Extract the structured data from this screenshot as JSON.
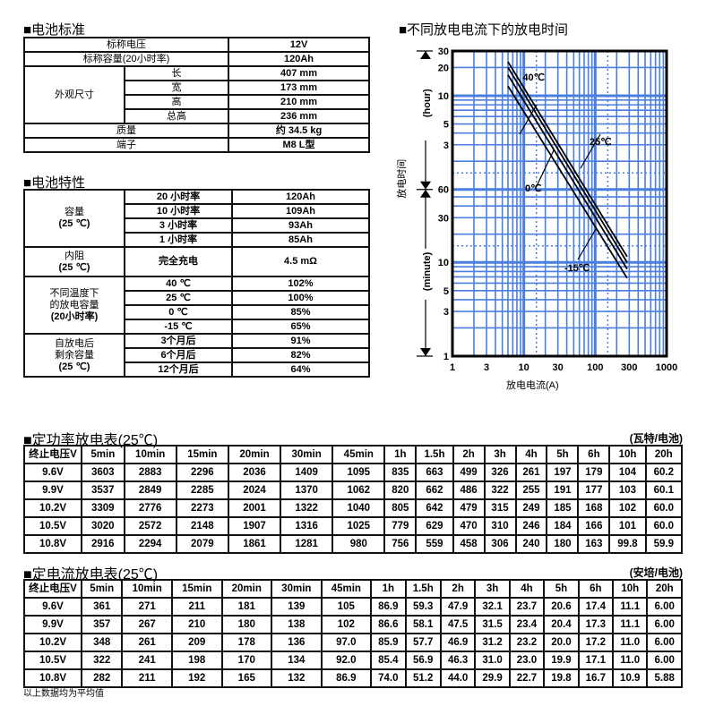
{
  "spec": {
    "title": "■电池标准",
    "rows": [
      [
        "标称电压",
        "12V"
      ],
      [
        "标称容量(20小时率)",
        "120Ah"
      ]
    ],
    "dim_label": "外观尺寸",
    "dims": [
      [
        "长",
        "407 mm"
      ],
      [
        "宽",
        "173 mm"
      ],
      [
        "高",
        "210 mm"
      ],
      [
        "总高",
        "236 mm"
      ]
    ],
    "rows2": [
      [
        "质量",
        "约 34.5 kg"
      ],
      [
        "端子",
        "M8 L型"
      ]
    ]
  },
  "char": {
    "title": "■电池特性",
    "groups": [
      {
        "label": [
          "容量",
          "(25 ℃)"
        ],
        "rows": [
          [
            "20 小时率",
            "120Ah"
          ],
          [
            "10 小时率",
            "109Ah"
          ],
          [
            "3 小时率",
            "93Ah"
          ],
          [
            "1 小时率",
            "85Ah"
          ]
        ]
      },
      {
        "label": [
          "内阻",
          "(25 ℃)"
        ],
        "rows": [
          [
            "完全充电",
            "4.5 mΩ"
          ]
        ]
      },
      {
        "label": [
          "不同温度下",
          "的放电容量",
          "(20小时率)"
        ],
        "rows": [
          [
            "40 ℃",
            "102%"
          ],
          [
            "25 ℃",
            "100%"
          ],
          [
            "0 ℃",
            "85%"
          ],
          [
            "-15  ℃",
            "65%"
          ]
        ]
      },
      {
        "label": [
          "自放电后",
          "剩余容量",
          "(25 ℃)"
        ],
        "rows": [
          [
            "3个月后",
            "91%"
          ],
          [
            "6个月后",
            "82%"
          ],
          [
            "12个月后",
            "64%"
          ]
        ]
      }
    ]
  },
  "chart_data": {
    "type": "line",
    "title": "■不同放电电流下的放电时间",
    "xlabel": "放电电流(A)",
    "ylabel": "放电时间",
    "ylabel_hour": "(hour)",
    "ylabel_minute": "(minute)",
    "xscale": "log",
    "xlim": [
      1,
      1000
    ],
    "xticks": [
      "1",
      "3",
      "10",
      "30",
      "100",
      "300",
      "1000"
    ],
    "yscale": "log",
    "ylim_minutes": [
      1,
      1800
    ],
    "yticks_minute": [
      "1",
      "3",
      "5",
      "10",
      "30",
      "60"
    ],
    "yticks_hour": [
      "3",
      "5",
      "10",
      "20",
      "30"
    ],
    "grid": true,
    "grid_color": "#4a7fe0",
    "series": [
      {
        "name": "40℃",
        "x": [
          6,
          280
        ],
        "minutes": [
          1380,
          11.5
        ]
      },
      {
        "name": "25℃",
        "x": [
          6,
          280
        ],
        "minutes": [
          1200,
          10
        ]
      },
      {
        "name": "0℃",
        "x": [
          6,
          280
        ],
        "minutes": [
          1000,
          8.5
        ]
      },
      {
        "name": "-15℃",
        "x": [
          6,
          280
        ],
        "minutes": [
          760,
          6.8
        ]
      }
    ]
  },
  "power": {
    "title": "■定功率放电表(25℃)",
    "unit": "(瓦特/电池)",
    "header": [
      "终止电压V",
      "5min",
      "10min",
      "15min",
      "20min",
      "30min",
      "45min",
      "1h",
      "1.5h",
      "2h",
      "3h",
      "4h",
      "5h",
      "6h",
      "10h",
      "20h"
    ],
    "rows": [
      [
        "9.6V",
        "3603",
        "2883",
        "2296",
        "2036",
        "1409",
        "1095",
        "835",
        "663",
        "499",
        "326",
        "261",
        "197",
        "179",
        "104",
        "60.2"
      ],
      [
        "9.9V",
        "3537",
        "2849",
        "2285",
        "2024",
        "1370",
        "1062",
        "820",
        "662",
        "486",
        "322",
        "255",
        "191",
        "177",
        "103",
        "60.1"
      ],
      [
        "10.2V",
        "3309",
        "2776",
        "2273",
        "2001",
        "1322",
        "1040",
        "805",
        "642",
        "479",
        "315",
        "249",
        "185",
        "168",
        "102",
        "60.0"
      ],
      [
        "10.5V",
        "3020",
        "2572",
        "2148",
        "1907",
        "1316",
        "1025",
        "779",
        "629",
        "470",
        "310",
        "246",
        "184",
        "166",
        "101",
        "60.0"
      ],
      [
        "10.8V",
        "2916",
        "2294",
        "2079",
        "1861",
        "1281",
        "980",
        "756",
        "559",
        "458",
        "306",
        "240",
        "180",
        "163",
        "99.8",
        "59.9"
      ]
    ]
  },
  "current": {
    "title": "■定电流放电表(25℃)",
    "unit": "(安培/电池)",
    "header": [
      "终止电压V",
      "5min",
      "10min",
      "15min",
      "20min",
      "30min",
      "45min",
      "1h",
      "1.5h",
      "2h",
      "3h",
      "4h",
      "5h",
      "6h",
      "10h",
      "20h"
    ],
    "rows": [
      [
        "9.6V",
        "361",
        "271",
        "211",
        "181",
        "139",
        "105",
        "86.9",
        "59.3",
        "47.9",
        "32.1",
        "23.7",
        "20.6",
        "17.4",
        "11.1",
        "6.00"
      ],
      [
        "9.9V",
        "357",
        "267",
        "210",
        "180",
        "138",
        "102",
        "86.6",
        "58.1",
        "47.5",
        "31.5",
        "23.4",
        "20.4",
        "17.3",
        "11.1",
        "6.00"
      ],
      [
        "10.2V",
        "348",
        "261",
        "209",
        "178",
        "136",
        "97.0",
        "85.9",
        "57.7",
        "46.9",
        "31.2",
        "23.2",
        "20.0",
        "17.2",
        "11.0",
        "6.00"
      ],
      [
        "10.5V",
        "322",
        "241",
        "198",
        "170",
        "134",
        "92.0",
        "85.4",
        "56.9",
        "46.3",
        "31.0",
        "23.0",
        "19.9",
        "17.1",
        "11.0",
        "6.00"
      ],
      [
        "10.8V",
        "282",
        "211",
        "192",
        "165",
        "132",
        "86.9",
        "74.0",
        "51.2",
        "44.0",
        "29.9",
        "22.7",
        "19.8",
        "16.7",
        "10.9",
        "5.88"
      ]
    ]
  },
  "note": "以上数据均为平均值"
}
